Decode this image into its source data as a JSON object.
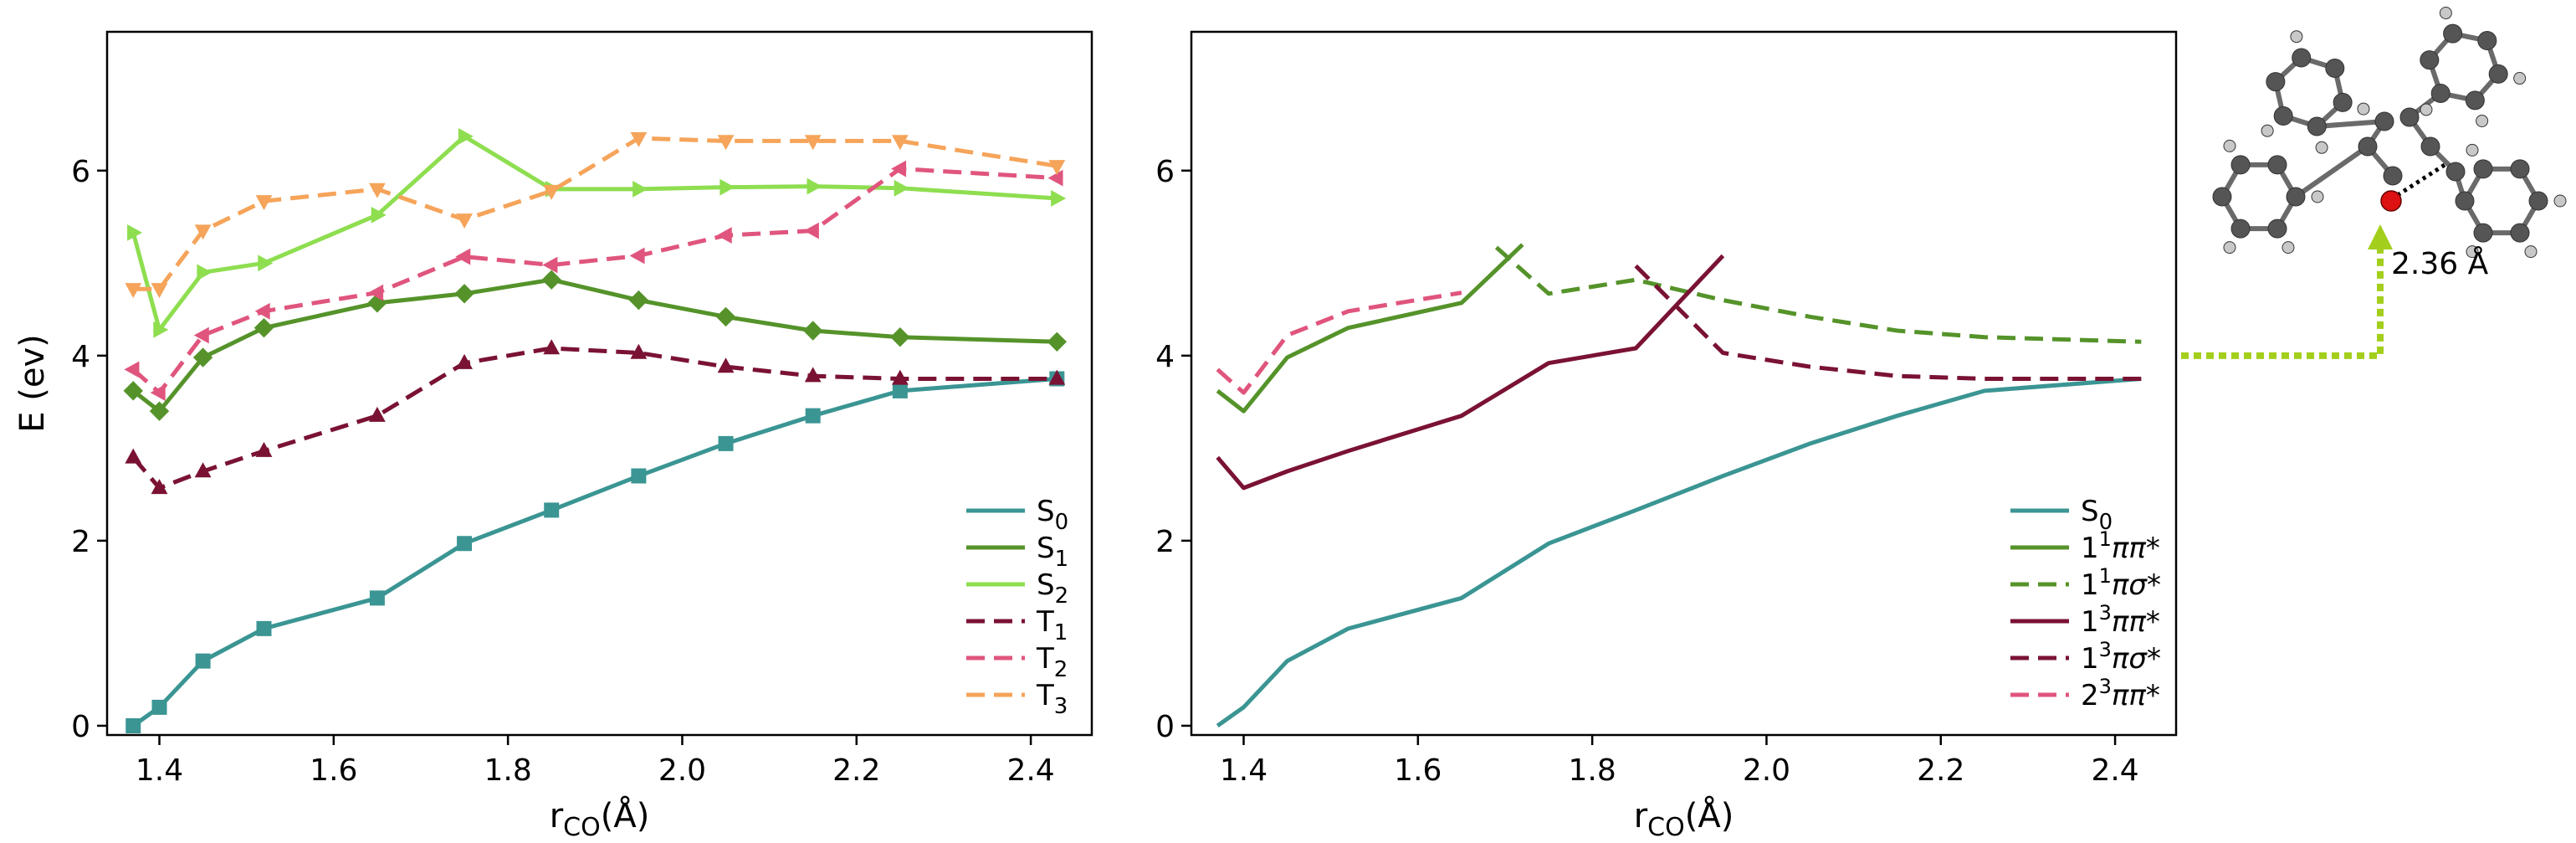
{
  "chart_data": [
    {
      "type": "line",
      "xlabel_main": "r",
      "xlabel_sub": "CO",
      "xlabel_unit": "(Å)",
      "ylabel": "E (ev)",
      "xlim": [
        1.34,
        2.47
      ],
      "ylim": [
        -0.1,
        7.5
      ],
      "xticks": [
        "1.4",
        "1.6",
        "1.8",
        "2.0",
        "2.2",
        "2.4"
      ],
      "yticks": [
        "0",
        "2",
        "4",
        "6"
      ],
      "x": [
        1.37,
        1.4,
        1.45,
        1.52,
        1.65,
        1.75,
        1.85,
        1.95,
        2.05,
        2.15,
        2.25,
        2.43
      ],
      "grid": false,
      "legend_position": "lower-right",
      "series": [
        {
          "name": "S",
          "sub": "0",
          "sup": "",
          "color": "#3a9593",
          "dash": "solid",
          "marker": "square",
          "values": [
            0.0,
            0.2,
            0.7,
            1.05,
            1.38,
            1.97,
            2.33,
            2.7,
            3.05,
            3.35,
            3.62,
            3.75
          ]
        },
        {
          "name": "S",
          "sub": "1",
          "sup": "",
          "color": "#55932a",
          "dash": "solid",
          "marker": "diamond",
          "values": [
            3.62,
            3.4,
            3.98,
            4.3,
            4.57,
            4.67,
            4.82,
            4.6,
            4.42,
            4.27,
            4.2,
            4.15
          ]
        },
        {
          "name": "S",
          "sub": "2",
          "sup": "",
          "color": "#8ede50",
          "dash": "solid",
          "marker": "triangle-right",
          "values": [
            5.33,
            4.28,
            4.9,
            5.0,
            5.52,
            6.37,
            5.8,
            5.8,
            5.82,
            5.83,
            5.81,
            5.7
          ]
        },
        {
          "name": "T",
          "sub": "1",
          "sup": "",
          "color": "#7a1233",
          "dash": "dashed",
          "marker": "triangle-up",
          "values": [
            2.9,
            2.57,
            2.75,
            2.97,
            3.35,
            3.92,
            4.08,
            4.03,
            3.88,
            3.78,
            3.75,
            3.75
          ]
        },
        {
          "name": "T",
          "sub": "2",
          "sup": "",
          "color": "#e0557d",
          "dash": "dashed",
          "marker": "triangle-left",
          "values": [
            3.85,
            3.6,
            4.22,
            4.48,
            4.68,
            5.07,
            4.98,
            5.08,
            5.3,
            5.35,
            6.02,
            5.92
          ]
        },
        {
          "name": "T",
          "sub": "3",
          "sup": "",
          "color": "#f5a45a",
          "dash": "dashed",
          "marker": "triangle-down",
          "values": [
            4.72,
            4.72,
            5.35,
            5.67,
            5.8,
            5.47,
            5.78,
            6.35,
            6.32,
            6.32,
            6.32,
            6.05
          ]
        }
      ]
    },
    {
      "type": "line",
      "xlabel_main": "r",
      "xlabel_sub": "CO",
      "xlabel_unit": "(Å)",
      "ylabel": "",
      "xlim": [
        1.34,
        2.47
      ],
      "ylim": [
        -0.1,
        7.5
      ],
      "xticks": [
        "1.4",
        "1.6",
        "1.8",
        "2.0",
        "2.2",
        "2.4"
      ],
      "yticks": [
        "0",
        "2",
        "4",
        "6"
      ],
      "grid": false,
      "legend_position": "lower-right",
      "series": [
        {
          "name": "S",
          "sub": "0",
          "sup": "",
          "suffix": "",
          "color": "#3a9593",
          "dash": "solid",
          "x": [
            1.37,
            1.4,
            1.45,
            1.52,
            1.65,
            1.75,
            1.85,
            1.95,
            2.05,
            2.15,
            2.25,
            2.43
          ],
          "values": [
            0.0,
            0.2,
            0.7,
            1.05,
            1.38,
            1.97,
            2.33,
            2.7,
            3.05,
            3.35,
            3.62,
            3.75
          ]
        },
        {
          "name": "1",
          "sub": "",
          "sup": "1",
          "suffix": "ππ*",
          "color": "#55932a",
          "dash": "solid",
          "x": [
            1.37,
            1.4,
            1.45,
            1.52,
            1.65,
            1.72
          ],
          "values": [
            3.62,
            3.4,
            3.98,
            4.3,
            4.57,
            5.2
          ]
        },
        {
          "name": "1",
          "sub": "",
          "sup": "1",
          "suffix": "πσ*",
          "color": "#55932a",
          "dash": "dashed",
          "x": [
            1.69,
            1.75,
            1.85,
            1.95,
            2.05,
            2.15,
            2.25,
            2.43
          ],
          "values": [
            5.17,
            4.67,
            4.82,
            4.6,
            4.42,
            4.27,
            4.2,
            4.15
          ]
        },
        {
          "name": "1",
          "sub": "",
          "sup": "3",
          "suffix": "ππ*",
          "color": "#7a1233",
          "dash": "solid",
          "x": [
            1.37,
            1.4,
            1.45,
            1.52,
            1.65,
            1.75,
            1.85,
            1.95
          ],
          "values": [
            2.9,
            2.57,
            2.75,
            2.97,
            3.35,
            3.92,
            4.08,
            5.08
          ]
        },
        {
          "name": "1",
          "sub": "",
          "sup": "3",
          "suffix": "πσ*",
          "color": "#7a1233",
          "dash": "dashed",
          "x": [
            1.85,
            1.95,
            2.05,
            2.15,
            2.25,
            2.43
          ],
          "values": [
            4.97,
            4.03,
            3.88,
            3.78,
            3.75,
            3.75
          ]
        },
        {
          "name": "2",
          "sub": "",
          "sup": "3",
          "suffix": "ππ*",
          "color": "#e0557d",
          "dash": "dashed",
          "x": [
            1.37,
            1.4,
            1.45,
            1.52,
            1.65
          ],
          "values": [
            3.85,
            3.6,
            4.22,
            4.48,
            4.68
          ]
        }
      ]
    }
  ],
  "annotation": {
    "distance_label": "2.36 Å",
    "arrow_color": "#a3cf1c",
    "arrow_style": "dotted",
    "molecule_description_icon": "molecule-structure-icon"
  },
  "colors": {
    "axis": "#000000",
    "atom_carbon": "#555555",
    "atom_hydrogen": "#c8c8c8",
    "atom_oxygen": "#dd1111"
  }
}
